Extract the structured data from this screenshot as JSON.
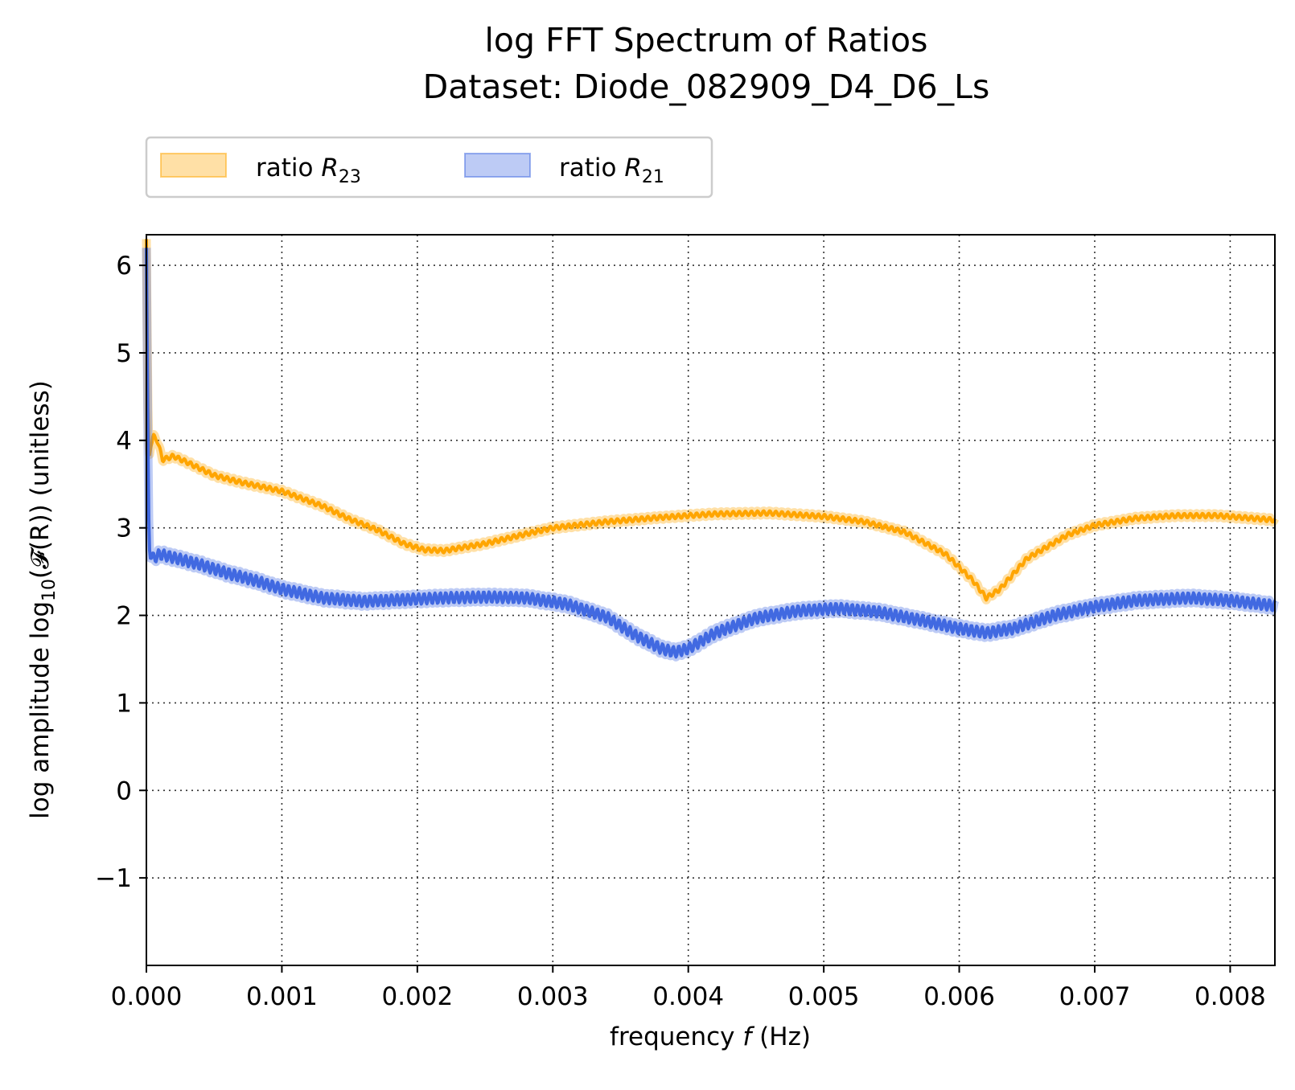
{
  "chart_data": {
    "type": "line",
    "title": "log FFT Spectrum of Ratios",
    "subtitle": "Dataset: Diode_082909_D4_D6_Ls",
    "xlabel": "frequency f (Hz)",
    "xlabel_pre": "frequency ",
    "xlabel_var": "f",
    "xlabel_post": " (Hz)",
    "ylabel": "log amplitude log10(𝓕(R)) (unitless)",
    "ylabel_pre": "log amplitude log",
    "ylabel_sub": "10",
    "ylabel_post": "(𝓕(R)) (unitless)",
    "xlim": [
      0.0,
      0.00833
    ],
    "ylim": [
      -2.0,
      6.35
    ],
    "xticks": [
      0.0,
      0.001,
      0.002,
      0.003,
      0.004,
      0.005,
      0.006,
      0.007,
      0.008
    ],
    "xtick_labels": [
      "0.000",
      "0.001",
      "0.002",
      "0.003",
      "0.004",
      "0.005",
      "0.006",
      "0.007",
      "0.008"
    ],
    "yticks": [
      -1,
      0,
      1,
      2,
      3,
      4,
      5,
      6
    ],
    "ytick_labels": [
      "−1",
      "0",
      "1",
      "2",
      "3",
      "4",
      "5",
      "6"
    ],
    "grid": true,
    "legend_position": "top-left-above",
    "series": [
      {
        "name": "ratio R23",
        "legend_base": "ratio ",
        "legend_var": "R",
        "legend_sub": "23",
        "color": "#FFA500",
        "band_color": "#FFA500",
        "noise": 0.025,
        "noise_period": 4.5e-05,
        "x": [
          0.0,
          1e-05,
          2e-05,
          3e-05,
          5e-05,
          8e-05,
          0.00012,
          0.0002,
          0.0003,
          0.0005,
          0.0007,
          0.001,
          0.0013,
          0.0015,
          0.0017,
          0.0019,
          0.00205,
          0.0022,
          0.0025,
          0.0028,
          0.003,
          0.0034,
          0.0038,
          0.0042,
          0.0046,
          0.005,
          0.0053,
          0.0056,
          0.0059,
          0.0061,
          0.0062,
          0.0063,
          0.0065,
          0.0068,
          0.007,
          0.0073,
          0.0076,
          0.0079,
          0.00833
        ],
        "y": [
          6.3,
          4.5,
          3.8,
          3.9,
          4.05,
          4.0,
          3.78,
          3.82,
          3.75,
          3.6,
          3.52,
          3.42,
          3.25,
          3.1,
          2.98,
          2.82,
          2.75,
          2.74,
          2.82,
          2.93,
          3.0,
          3.07,
          3.12,
          3.16,
          3.17,
          3.13,
          3.07,
          2.95,
          2.7,
          2.4,
          2.2,
          2.3,
          2.65,
          2.92,
          3.03,
          3.11,
          3.14,
          3.14,
          3.09
        ]
      },
      {
        "name": "ratio R21",
        "legend_base": "ratio ",
        "legend_var": "R",
        "legend_sub": "21",
        "color": "#4169E1",
        "band_color": "#4169E1",
        "noise": 0.06,
        "noise_period": 4e-05,
        "x": [
          0.0,
          1e-05,
          2e-05,
          3e-05,
          6e-05,
          0.0001,
          0.0002,
          0.0004,
          0.0006,
          0.0008,
          0.001,
          0.0013,
          0.0016,
          0.0019,
          0.0022,
          0.0025,
          0.0028,
          0.0031,
          0.0034,
          0.0036,
          0.0038,
          0.0039,
          0.004,
          0.0042,
          0.0045,
          0.0048,
          0.0051,
          0.0054,
          0.0057,
          0.006,
          0.0062,
          0.0064,
          0.0067,
          0.007,
          0.0073,
          0.0077,
          0.008,
          0.00833
        ],
        "y": [
          6.2,
          4.2,
          2.8,
          2.65,
          2.66,
          2.7,
          2.66,
          2.58,
          2.48,
          2.4,
          2.3,
          2.2,
          2.16,
          2.18,
          2.2,
          2.21,
          2.2,
          2.13,
          1.98,
          1.78,
          1.62,
          1.58,
          1.62,
          1.8,
          1.97,
          2.05,
          2.08,
          2.04,
          1.95,
          1.85,
          1.8,
          1.85,
          2.0,
          2.1,
          2.17,
          2.2,
          2.17,
          2.11
        ]
      }
    ]
  }
}
